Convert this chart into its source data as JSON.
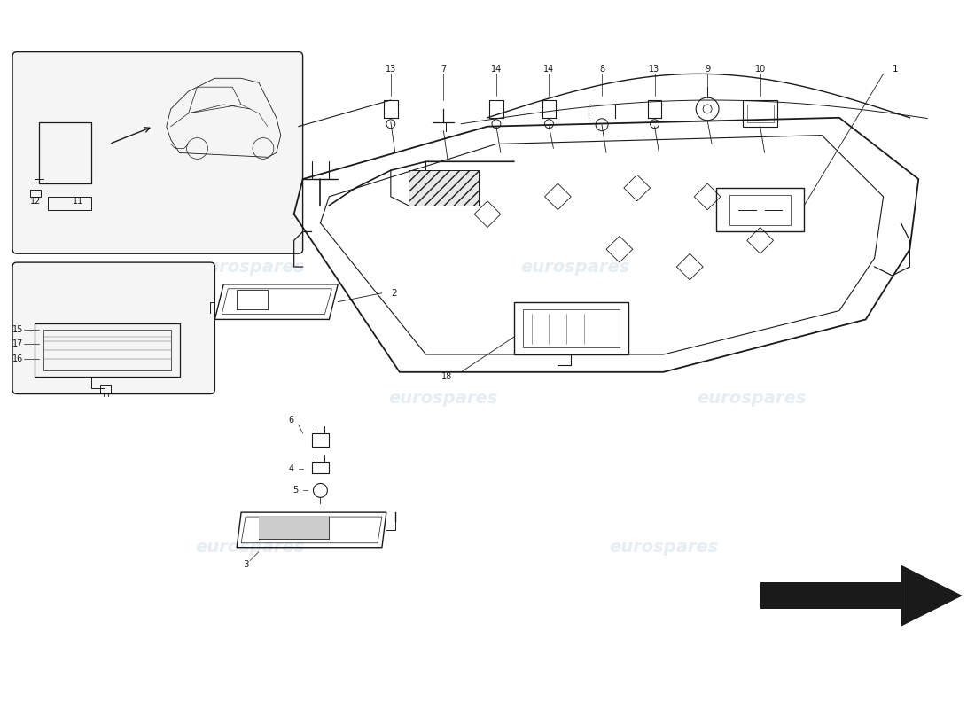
{
  "background_color": "#ffffff",
  "line_color": "#1a1a1a",
  "watermark_text": "eurospares",
  "watermark_color": "#b8cfe0",
  "watermark_alpha": 0.35,
  "fig_width": 11.0,
  "fig_height": 8.0
}
